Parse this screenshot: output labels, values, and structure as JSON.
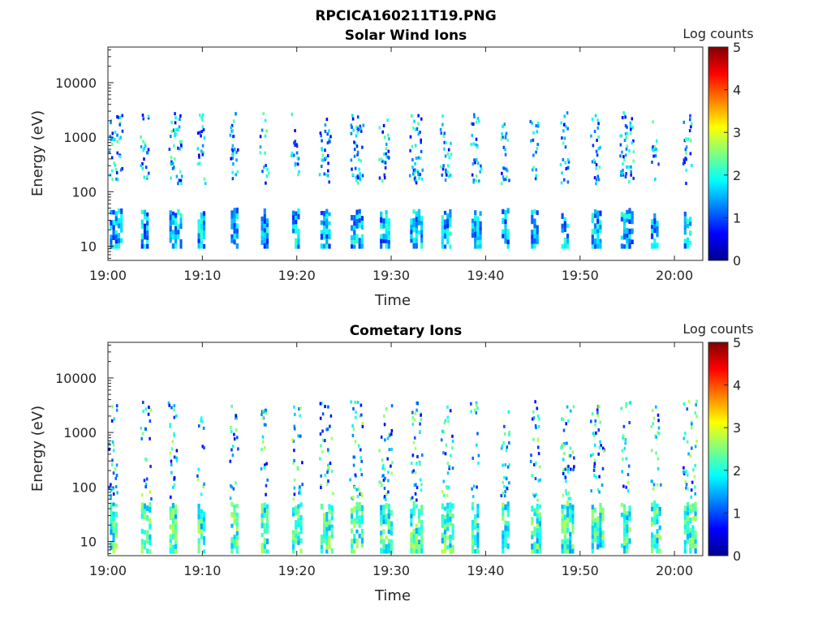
{
  "figure": {
    "title": "RPCICA160211T19.PNG"
  },
  "chart_data": [
    {
      "type": "heatmap",
      "title": "Solar Wind Ions",
      "xlabel": "Time",
      "ylabel": "Energy (eV)",
      "x_ticks": [
        "19:00",
        "19:10",
        "19:20",
        "19:30",
        "19:40",
        "19:50",
        "20:00"
      ],
      "y_scale": "log",
      "y_ticks": [
        "10",
        "100",
        "1000",
        "10000"
      ],
      "ylim": [
        5.5,
        45000
      ],
      "xlim_minutes": [
        0,
        63
      ],
      "colorbar": {
        "label": "Log counts",
        "ticks": [
          "0",
          "1",
          "2",
          "3",
          "4",
          "5"
        ],
        "range": [
          0,
          5
        ],
        "colormap": "jet"
      },
      "activity": {
        "burst_times_min": [
          0.2,
          3.5,
          6.5,
          9.5,
          13.0,
          16.2,
          19.5,
          22.5,
          25.7,
          28.8,
          32.0,
          35.3,
          38.5,
          41.7,
          44.8,
          48.0,
          51.2,
          54.3,
          57.5,
          61.0
        ],
        "low_band_ev": [
          9,
          40
        ],
        "mid_band_ev": [
          150,
          3000
        ],
        "typical_log_counts": 1.2,
        "max_log_counts": 2.4
      }
    },
    {
      "type": "heatmap",
      "title": "Cometary Ions",
      "xlabel": "Time",
      "ylabel": "Energy (eV)",
      "x_ticks": [
        "19:00",
        "19:10",
        "19:20",
        "19:30",
        "19:40",
        "19:50",
        "20:00"
      ],
      "y_scale": "log",
      "y_ticks": [
        "10",
        "100",
        "1000",
        "10000"
      ],
      "ylim": [
        5.5,
        45000
      ],
      "xlim_minutes": [
        0,
        63
      ],
      "colorbar": {
        "label": "Log counts",
        "ticks": [
          "0",
          "1",
          "2",
          "3",
          "4",
          "5"
        ],
        "range": [
          0,
          5
        ],
        "colormap": "jet"
      },
      "activity": {
        "burst_times_min": [
          0.2,
          3.5,
          6.5,
          9.5,
          13.0,
          16.2,
          19.5,
          22.5,
          25.7,
          28.8,
          32.0,
          35.3,
          38.5,
          41.7,
          44.8,
          48.0,
          51.2,
          54.3,
          57.5,
          61.0
        ],
        "low_band_ev": [
          6,
          45
        ],
        "mid_band_ev": [
          60,
          4000
        ],
        "typical_log_counts": 1.8,
        "max_log_counts": 2.8
      }
    }
  ]
}
